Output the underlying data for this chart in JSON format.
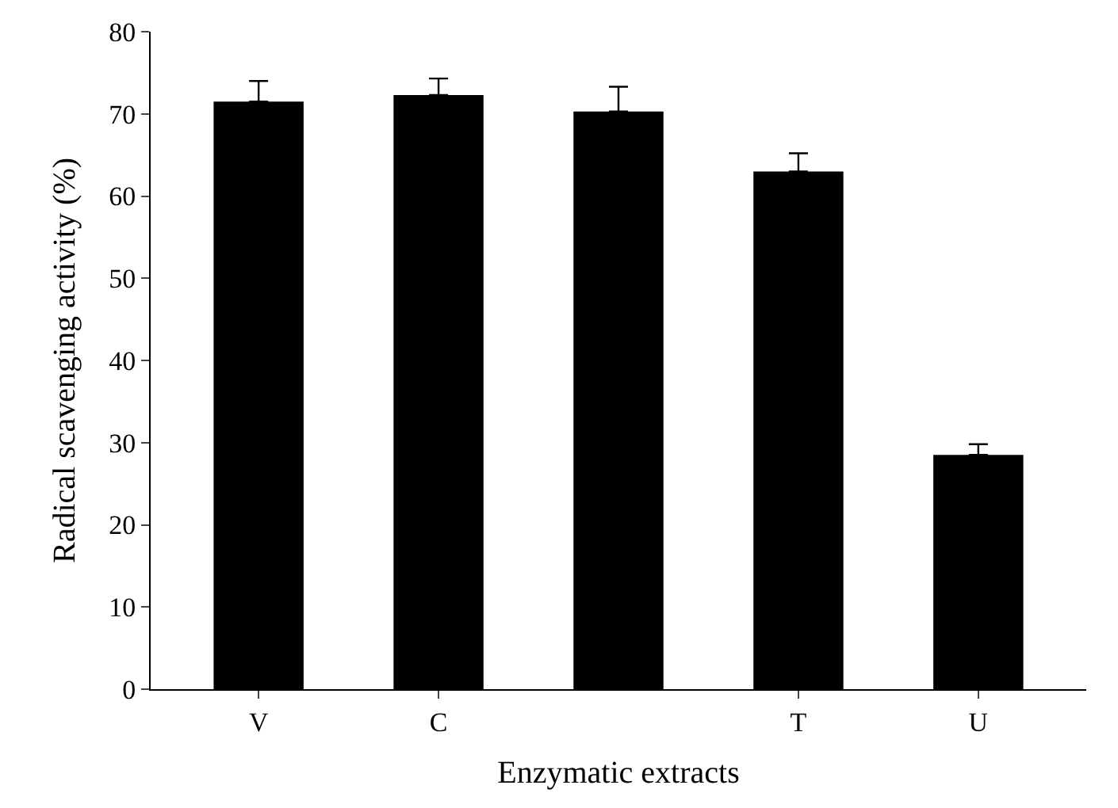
{
  "chart_data": {
    "type": "bar",
    "xlabel": "Enzymatic extracts",
    "ylabel": "Radical scavenging activity (%)",
    "categories": [
      "V",
      "C",
      null,
      "T",
      "U"
    ],
    "values": [
      71.5,
      72.3,
      70.3,
      63.0,
      28.5
    ],
    "errors": [
      [
        71.5,
        74.0
      ],
      [
        72.3,
        74.3
      ],
      [
        70.3,
        73.3
      ],
      [
        63.0,
        65.2
      ],
      [
        28.5,
        29.8
      ]
    ],
    "color": "#000000",
    "ylim": [
      0,
      80
    ],
    "yticks": [
      0,
      10,
      20,
      30,
      40,
      50,
      60,
      70,
      80
    ]
  }
}
